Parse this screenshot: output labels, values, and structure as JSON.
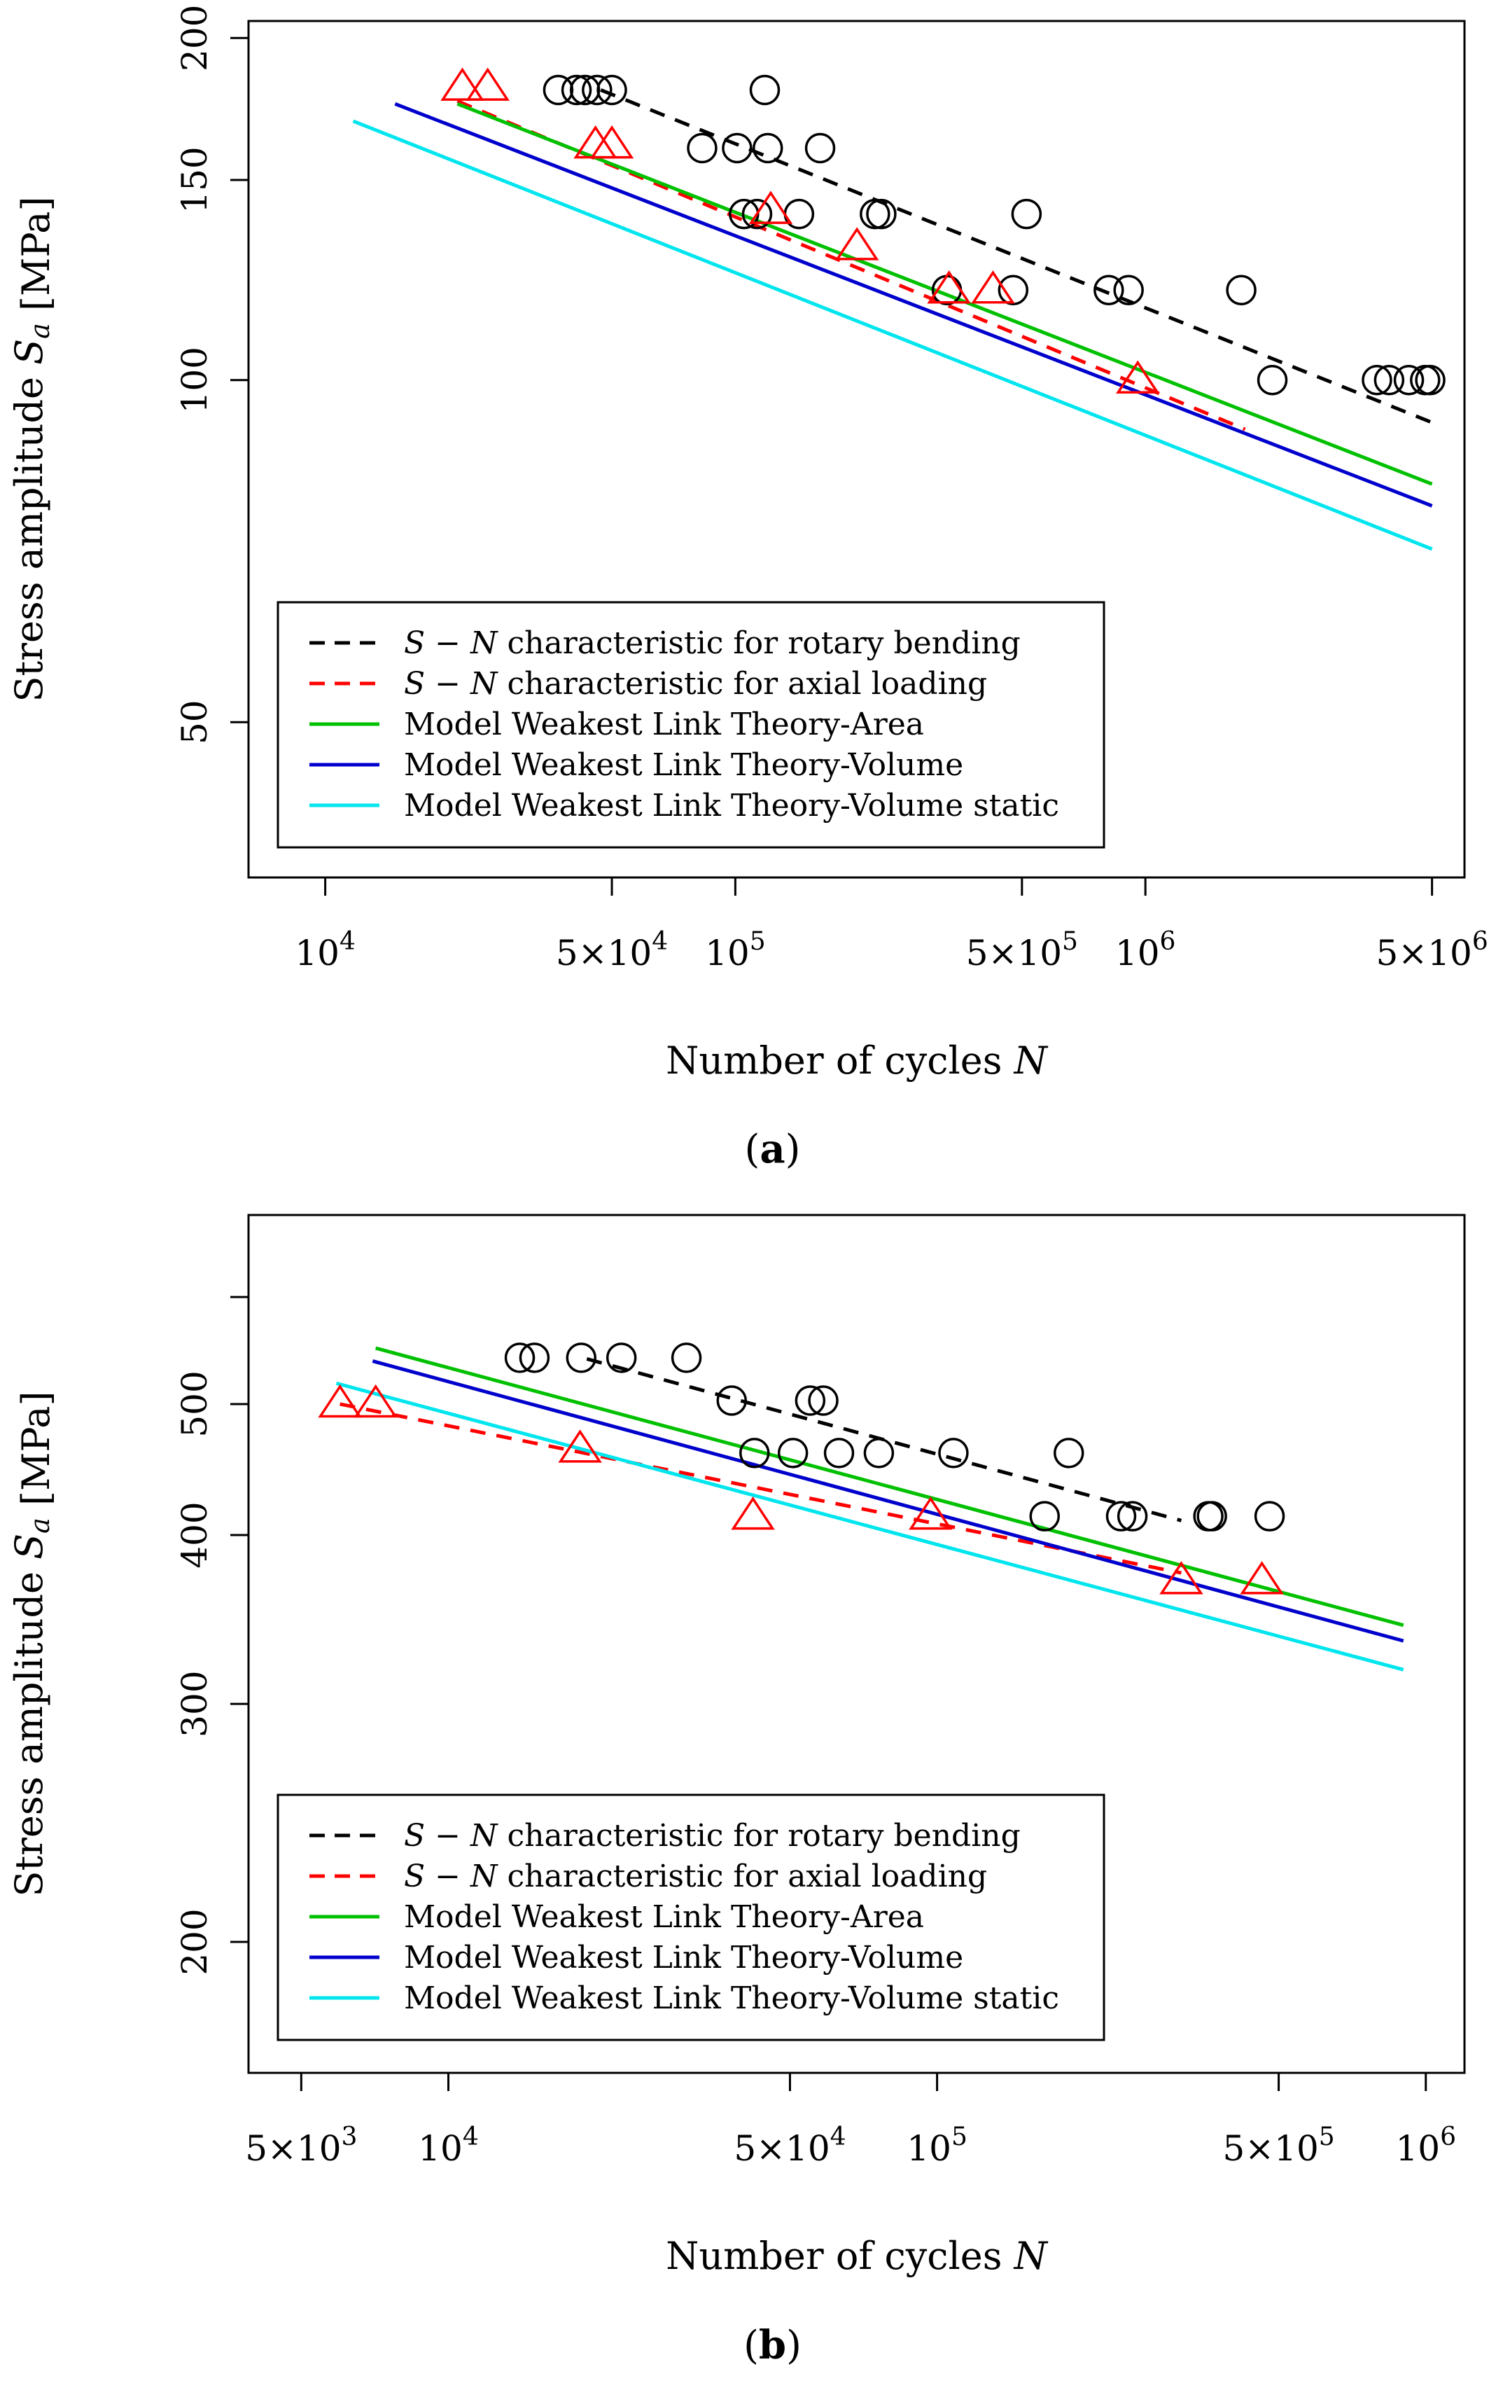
{
  "chart_data": [
    {
      "panel": "a",
      "panel_label": "(a)",
      "type": "scatter",
      "scale": {
        "x": "log",
        "y": "log"
      },
      "xlabel": "Number of cycles N",
      "ylabel": "Stress amplitude  S_a [MPa]",
      "xlim": [
        6500,
        6000000
      ],
      "ylim": [
        36.5,
        207
      ],
      "x_ticks": [
        {
          "value": 10000,
          "label": "10^4"
        },
        {
          "value": 50000,
          "label": "5×10^4"
        },
        {
          "value": 100000,
          "label": "10^5"
        },
        {
          "value": 500000,
          "label": "5×10^5"
        },
        {
          "value": 1000000,
          "label": "10^6"
        },
        {
          "value": 5000000,
          "label": "5×10^6"
        }
      ],
      "y_ticks": [
        {
          "value": 50,
          "label": "50"
        },
        {
          "value": 100,
          "label": "100"
        },
        {
          "value": 150,
          "label": "150"
        },
        {
          "value": 200,
          "label": "200"
        }
      ],
      "legend": {
        "position": "bottom-left",
        "entries": [
          {
            "label": "S − N characteristic for rotary bending",
            "color": "#000000",
            "style": "dashed"
          },
          {
            "label": "S − N characteristic for axial loading",
            "color": "#ff0000",
            "style": "dashed"
          },
          {
            "label": "Model Weakest Link Theory-Area",
            "color": "#00c000",
            "style": "solid"
          },
          {
            "label": "Model Weakest Link Theory-Volume",
            "color": "#0000cc",
            "style": "solid"
          },
          {
            "label": "Model Weakest Link Theory-Volume static",
            "color": "#00e5ee",
            "style": "solid"
          }
        ]
      },
      "series": [
        {
          "name": "rotary bending data",
          "kind": "points",
          "marker": "circle",
          "color": "#000000",
          "x": [
            37000,
            41000,
            43000,
            46000,
            50000,
            83000,
            101000,
            105000,
            113000,
            118000,
            120000,
            143000,
            161000,
            219000,
            227000,
            328000,
            476000,
            513000,
            814000,
            910000,
            1713000,
            2040000,
            3670000,
            3930000,
            4390000,
            4810000,
            4950000
          ],
          "y": [
            180,
            180,
            180,
            180,
            180,
            160,
            160,
            140,
            140,
            180,
            160,
            140,
            160,
            140,
            140,
            120,
            120,
            140,
            120,
            120,
            120,
            100,
            100,
            100,
            100,
            100,
            100
          ]
        },
        {
          "name": "axial loading data",
          "kind": "points",
          "marker": "triangle",
          "color": "#ff0000",
          "x": [
            21600,
            24900,
            45600,
            50000,
            122000,
            198000,
            332000,
            425000,
            958000
          ],
          "y": [
            181,
            181,
            161,
            161,
            141,
            131,
            120,
            120,
            100
          ]
        },
        {
          "name": "S − N characteristic for rotary bending",
          "kind": "line",
          "color": "#000000",
          "style": "dashed",
          "x": [
            47000,
            5100000
          ],
          "y": [
            180,
            91.5
          ]
        },
        {
          "name": "S − N characteristic for axial loading",
          "kind": "line",
          "color": "#ff0000",
          "style": "dashed",
          "x": [
            21000,
            1750000
          ],
          "y": [
            176,
            90.5
          ]
        },
        {
          "name": "Model Weakest Link Theory-Area",
          "kind": "line",
          "color": "#00c000",
          "style": "solid",
          "x": [
            21000,
            5000000
          ],
          "y": [
            175,
            81
          ]
        },
        {
          "name": "Model Weakest Link Theory-Volume",
          "kind": "line",
          "color": "#0000cc",
          "style": "solid",
          "x": [
            14800,
            5000000
          ],
          "y": [
            175,
            77.5
          ]
        },
        {
          "name": "Model Weakest Link Theory-Volume static",
          "kind": "line",
          "color": "#00e5ee",
          "style": "solid",
          "x": [
            11700,
            5000000
          ],
          "y": [
            169,
            71
          ]
        }
      ]
    },
    {
      "panel": "b",
      "panel_label": "(b)",
      "type": "scatter",
      "scale": {
        "x": "log",
        "y": "log"
      },
      "xlabel": "Number of cycles N",
      "ylabel": "Stress amplitude  S_a [MPa]",
      "xlim": [
        3900,
        1200000
      ],
      "ylim": [
        160,
        690
      ],
      "x_ticks": [
        {
          "value": 5000,
          "label": "5×10^3"
        },
        {
          "value": 10000,
          "label": "10^4"
        },
        {
          "value": 50000,
          "label": "5×10^4"
        },
        {
          "value": 100000,
          "label": "10^5"
        },
        {
          "value": 500000,
          "label": "5×10^5"
        },
        {
          "value": 1000000,
          "label": "10^6"
        }
      ],
      "y_ticks": [
        {
          "value": 200,
          "label": "200"
        },
        {
          "value": 300,
          "label": "300"
        },
        {
          "value": 400,
          "label": "400"
        },
        {
          "value": 500,
          "label": "500"
        },
        {
          "value": 600,
          "label": ""
        }
      ],
      "legend": {
        "position": "bottom-left",
        "entries": [
          {
            "label": "S − N characteristic for rotary bending",
            "color": "#000000",
            "style": "dashed"
          },
          {
            "label": "S − N characteristic for axial loading",
            "color": "#ff0000",
            "style": "dashed"
          },
          {
            "label": "Model Weakest Link Theory-Area",
            "color": "#00c000",
            "style": "solid"
          },
          {
            "label": "Model Weakest Link Theory-Volume",
            "color": "#0000cc",
            "style": "solid"
          },
          {
            "label": "Model Weakest Link Theory-Volume static",
            "color": "#00e5ee",
            "style": "solid"
          }
        ]
      },
      "series": [
        {
          "name": "rotary bending data",
          "kind": "points",
          "marker": "circle",
          "color": "#000000",
          "x": [
            14000,
            15000,
            18700,
            22600,
            30700,
            38000,
            42300,
            50700,
            55000,
            58500,
            63000,
            76000,
            108000,
            166000,
            186000,
            238000,
            251000,
            359000,
            365000,
            479000
          ],
          "y": [
            541,
            541,
            541,
            541,
            541,
            503,
            460,
            460,
            503,
            503,
            460,
            460,
            460,
            413,
            460,
            413,
            413,
            413,
            413,
            413
          ]
        },
        {
          "name": "axial loading data",
          "kind": "points",
          "marker": "triangle",
          "color": "#ff0000",
          "x": [
            6000,
            7100,
            18600,
            42000,
            97000,
            316000,
            462000
          ],
          "y": [
            500,
            500,
            463,
            413,
            413,
            370,
            370
          ]
        },
        {
          "name": "S − N characteristic for rotary bending",
          "kind": "line",
          "color": "#000000",
          "style": "dashed",
          "x": [
            19200,
            316000
          ],
          "y": [
            540,
            410
          ]
        },
        {
          "name": "S − N characteristic for axial loading",
          "kind": "line",
          "color": "#ff0000",
          "style": "dashed",
          "x": [
            6000,
            316000
          ],
          "y": [
            500,
            375
          ]
        },
        {
          "name": "Model Weakest Link Theory-Area",
          "kind": "line",
          "color": "#00c000",
          "style": "solid",
          "x": [
            7100,
            900000
          ],
          "y": [
            550,
            343
          ]
        },
        {
          "name": "Model Weakest Link Theory-Volume",
          "kind": "line",
          "color": "#0000cc",
          "style": "solid",
          "x": [
            7000,
            900000
          ],
          "y": [
            538,
            334
          ]
        },
        {
          "name": "Model Weakest Link Theory-Volume static",
          "kind": "line",
          "color": "#00e5ee",
          "style": "solid",
          "x": [
            5900,
            900000
          ],
          "y": [
            518,
            318
          ]
        }
      ]
    }
  ]
}
